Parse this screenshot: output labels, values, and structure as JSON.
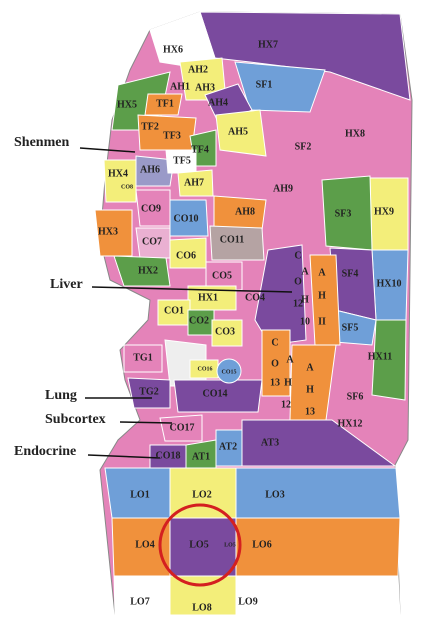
{
  "callouts": [
    "Shenmen",
    "Liver",
    "Lung",
    "Subcortex",
    "Endocrine"
  ],
  "regions": [
    "HX6",
    "HX7",
    "AH2",
    "AH1",
    "AH3",
    "SF1",
    "HX5",
    "TF1",
    "AH4",
    "TF2",
    "TF3",
    "AH5",
    "HX8",
    "TF4",
    "SF2",
    "HX4",
    "AH6",
    "TF5",
    "CO8",
    "AH7",
    "AH9",
    "CO9",
    "CO10",
    "AH8",
    "SF3",
    "HX9",
    "HX3",
    "CO7",
    "CO11",
    "CO6",
    "C",
    "HX2",
    "CO5",
    "O",
    "12",
    "A",
    "H",
    "10",
    "A",
    "H",
    "II",
    "SF4",
    "HX10",
    "HX1",
    "CO4",
    "CO1",
    "CO2",
    "CO3",
    "SF5",
    "TG1",
    "CO16",
    "CO15",
    "C",
    "O",
    "13",
    "A",
    "H",
    "12",
    "A",
    "H",
    "13",
    "HX11",
    "TG2",
    "CO14",
    "SF6",
    "HX12",
    "CO17",
    "CO18",
    "AT1",
    "AT2",
    "AT3",
    "LO1",
    "LO2",
    "LO3",
    "LO4",
    "LO5",
    "LO5",
    "LO6",
    "LO7",
    "LO8",
    "LO9"
  ]
}
